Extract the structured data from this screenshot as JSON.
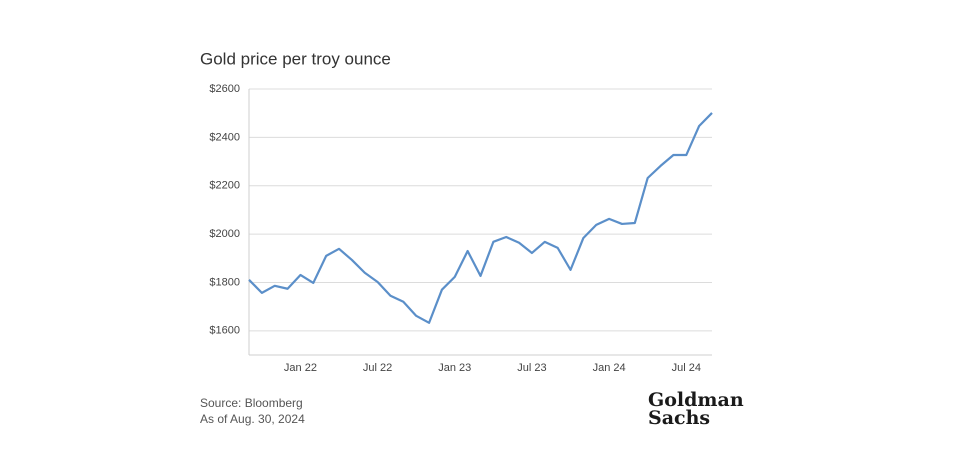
{
  "chart_data": {
    "type": "line",
    "title": "Gold price per troy ounce",
    "categories": [
      null,
      null,
      null,
      null,
      "Jan 22",
      null,
      null,
      null,
      null,
      null,
      "Jul 22",
      null,
      null,
      null,
      null,
      null,
      "Jan 23",
      null,
      null,
      null,
      null,
      null,
      "Jul 23",
      null,
      null,
      null,
      null,
      null,
      "Jan 24",
      null,
      null,
      null,
      null,
      null,
      "Jul 24",
      null,
      null
    ],
    "series": [
      {
        "name": "Gold",
        "color": "#5b8fc9",
        "values": [
          1811,
          1757,
          1786,
          1774,
          1831,
          1798,
          1910,
          1939,
          1893,
          1840,
          1802,
          1745,
          1720,
          1662,
          1633,
          1770,
          1823,
          1930,
          1827,
          1968,
          1988,
          1964,
          1922,
          1968,
          1943,
          1852,
          1984,
          2038,
          2063,
          2042,
          2046,
          2232,
          2282,
          2327,
          2327,
          2447,
          2501
        ]
      }
    ],
    "ylim": [
      1500,
      2600
    ],
    "yticks": [
      {
        "value": 1600,
        "label": "$1600"
      },
      {
        "value": 1800,
        "label": "$1800"
      },
      {
        "value": 2000,
        "label": "$2000"
      },
      {
        "value": 2200,
        "label": "$2200"
      },
      {
        "value": 2400,
        "label": "$2400"
      },
      {
        "value": 2600,
        "label": "$2600"
      }
    ],
    "grid": true
  },
  "footer": {
    "source": "Source: Bloomberg",
    "as_of": "As of Aug. 30, 2024",
    "logo": [
      "Goldman",
      "Sachs"
    ]
  }
}
